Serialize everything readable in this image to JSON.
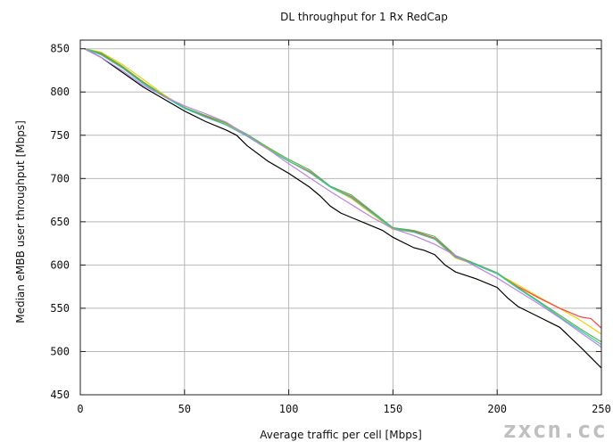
{
  "chart_data": {
    "type": "line",
    "title": "DL throughput for 1 Rx RedCap",
    "xlabel": "Average traffic per cell [Mbps]",
    "ylabel": "Median eMBB user throughput [Mbps]",
    "xlim": [
      0,
      250
    ],
    "ylim": [
      450,
      860
    ],
    "xticks": [
      0,
      50,
      100,
      150,
      200,
      250
    ],
    "yticks": [
      450,
      500,
      550,
      600,
      650,
      700,
      750,
      800,
      850
    ],
    "grid": true,
    "legend": "none",
    "series": [
      {
        "color": "#000000",
        "x": [
          2,
          10,
          20,
          30,
          40,
          50,
          60,
          70,
          75,
          80,
          90,
          100,
          110,
          115,
          120,
          125,
          130,
          140,
          145,
          150,
          160,
          165,
          170,
          175,
          180,
          190,
          200,
          205,
          210,
          220,
          230,
          240,
          250
        ],
        "y": [
          850,
          840,
          823,
          806,
          792,
          778,
          766,
          756,
          750,
          738,
          720,
          706,
          690,
          680,
          668,
          660,
          655,
          645,
          640,
          632,
          620,
          617,
          612,
          600,
          592,
          584,
          574,
          562,
          552,
          540,
          528,
          505,
          481
        ]
      },
      {
        "color": "#f0d000",
        "x": [
          2,
          10,
          20,
          30,
          40,
          50,
          60,
          70,
          80,
          90,
          100,
          110,
          120,
          130,
          140,
          150,
          160,
          170,
          180,
          190,
          200,
          210,
          220,
          230,
          240,
          250
        ],
        "y": [
          850,
          846,
          832,
          815,
          797,
          782,
          772,
          763,
          750,
          735,
          720,
          707,
          690,
          677,
          659,
          641,
          638,
          630,
          608,
          600,
          590,
          577,
          563,
          550,
          536,
          520
        ]
      },
      {
        "color": "#ff4040",
        "x": [
          2,
          10,
          20,
          30,
          40,
          50,
          60,
          70,
          80,
          90,
          100,
          110,
          120,
          130,
          140,
          150,
          160,
          170,
          180,
          190,
          200,
          210,
          220,
          230,
          240,
          245,
          250
        ],
        "y": [
          850,
          844,
          829,
          811,
          795,
          782,
          772,
          762,
          749,
          734,
          720,
          708,
          690,
          679,
          661,
          643,
          639,
          631,
          610,
          600,
          590,
          575,
          562,
          550,
          540,
          538,
          527
        ]
      },
      {
        "color": "#40c040",
        "x": [
          2,
          10,
          20,
          30,
          40,
          50,
          60,
          70,
          80,
          90,
          100,
          110,
          120,
          130,
          140,
          150,
          160,
          170,
          180,
          190,
          200,
          210,
          220,
          230,
          240,
          250
        ],
        "y": [
          850,
          845,
          830,
          812,
          796,
          782,
          773,
          764,
          751,
          736,
          722,
          710,
          691,
          681,
          662,
          643,
          640,
          633,
          611,
          601,
          591,
          574,
          558,
          542,
          526,
          511
        ]
      },
      {
        "color": "#40c0c0",
        "x": [
          2,
          10,
          20,
          30,
          40,
          50,
          60,
          70,
          80,
          90,
          100,
          110,
          120,
          130,
          140,
          150,
          160,
          170,
          180,
          190,
          200,
          210,
          220,
          230,
          240,
          250
        ],
        "y": [
          850,
          843,
          828,
          810,
          795,
          781,
          771,
          762,
          749,
          734,
          720,
          707,
          690,
          678,
          660,
          642,
          638,
          630,
          609,
          600,
          590,
          573,
          557,
          540,
          524,
          508
        ]
      },
      {
        "color": "#c080e0",
        "x": [
          2,
          10,
          20,
          30,
          40,
          50,
          60,
          70,
          80,
          90,
          100,
          110,
          120,
          130,
          140,
          150,
          160,
          170,
          180,
          190,
          200,
          210,
          220,
          230,
          240,
          250
        ],
        "y": [
          850,
          840,
          825,
          808,
          795,
          784,
          775,
          765,
          750,
          734,
          717,
          701,
          685,
          670,
          655,
          642,
          634,
          624,
          611,
          598,
          585,
          570,
          555,
          539,
          522,
          505
        ]
      }
    ]
  },
  "watermark": "zxcn.cc"
}
